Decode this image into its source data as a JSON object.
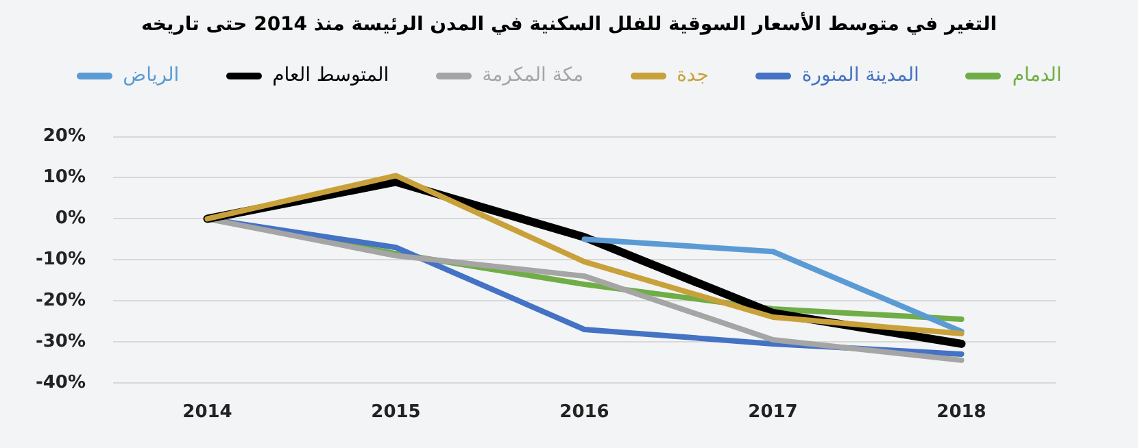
{
  "chart_data": {
    "type": "line",
    "title": "التغير في متوسط الأسعار السوقية للفلل السكنية في المدن الرئيسة منذ 2014 حتى تاريخه",
    "categories": [
      "2014",
      "2015",
      "2016",
      "2017",
      "2018"
    ],
    "series": [
      {
        "name": "الرياض",
        "color": "#5b9bd5",
        "values": [
          null,
          null,
          -5,
          -8,
          -27.5
        ]
      },
      {
        "name": "المتوسط العام",
        "color": "#000000",
        "values": [
          0,
          9,
          -4.5,
          -23,
          -30.5
        ]
      },
      {
        "name": "مكة المكرمة",
        "color": "#a5a5a5",
        "values": [
          0,
          -9,
          -14,
          -29.5,
          -34.5
        ]
      },
      {
        "name": "جدة",
        "color": "#c9a13a",
        "values": [
          0,
          10.5,
          -10.5,
          -24,
          -28
        ]
      },
      {
        "name": "المدينة المنورة",
        "color": "#4472c4",
        "values": [
          0,
          -7,
          -27,
          -30.5,
          -33
        ]
      },
      {
        "name": "الدمام",
        "color": "#70ad47",
        "values": [
          0,
          -8.5,
          -16,
          -22,
          -24.5
        ]
      }
    ],
    "ylim": [
      -40,
      20
    ],
    "yticks": [
      {
        "value": -40,
        "label": "-40%"
      },
      {
        "value": -30,
        "label": "-30%"
      },
      {
        "value": -20,
        "label": "-20%"
      },
      {
        "value": -10,
        "label": "-10%"
      },
      {
        "value": 0,
        "label": "0%"
      },
      {
        "value": 10,
        "label": "10%"
      },
      {
        "value": 20,
        "label": "20%"
      }
    ],
    "grid": "y",
    "legend": "top",
    "marker": "none",
    "line_style": "solid"
  }
}
